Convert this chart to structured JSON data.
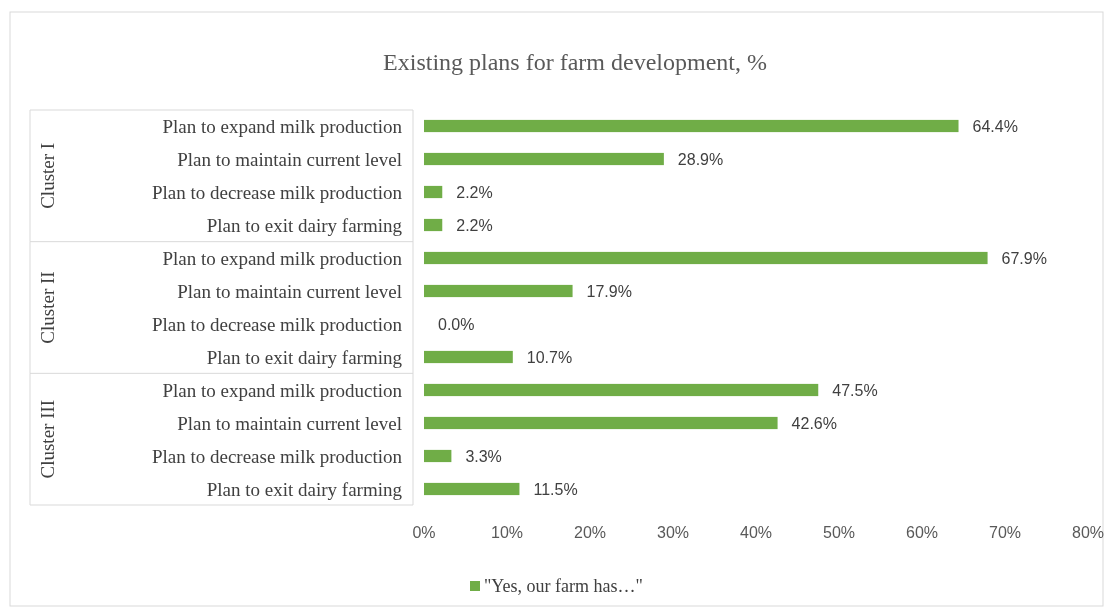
{
  "chart_data": {
    "type": "bar",
    "orientation": "horizontal",
    "title": "Existing plans for farm development, %",
    "categories": [
      "Plan to expand milk production",
      "Plan to maintain current level",
      "Plan to decrease milk production",
      "Plan to exit dairy farming",
      "Plan to expand milk production",
      "Plan to maintain current level",
      "Plan to decrease milk production",
      "Plan to exit dairy farming",
      "Plan to expand milk production",
      "Plan to maintain current level",
      "Plan to decrease milk production",
      "Plan to exit dairy farming"
    ],
    "series": [
      {
        "name": "\"Yes, our farm has…\"",
        "color": "#70ad47",
        "values": [
          64.4,
          28.9,
          2.2,
          2.2,
          67.9,
          17.9,
          0.0,
          10.7,
          47.5,
          42.6,
          3.3,
          11.5
        ],
        "value_labels": [
          "64.4%",
          "28.9%",
          "2.2%",
          "2.2%",
          "67.9%",
          "17.9%",
          "0.0%",
          "10.7%",
          "47.5%",
          "42.6%",
          "3.3%",
          "11.5%"
        ]
      }
    ],
    "annotations": [
      "Cluster I",
      "Cluster II",
      "Cluster III"
    ],
    "xlim": [
      0,
      80
    ],
    "xticks": [
      {
        "value": 0,
        "label": "0%"
      },
      {
        "value": 10,
        "label": "10%"
      },
      {
        "value": 20,
        "label": "20%"
      },
      {
        "value": 30,
        "label": "30%"
      },
      {
        "value": 40,
        "label": "40%"
      },
      {
        "value": 50,
        "label": "50%"
      },
      {
        "value": 60,
        "label": "60%"
      },
      {
        "value": 70,
        "label": "70%"
      },
      {
        "value": 80,
        "label": "80%"
      }
    ],
    "legend": "bottom"
  }
}
